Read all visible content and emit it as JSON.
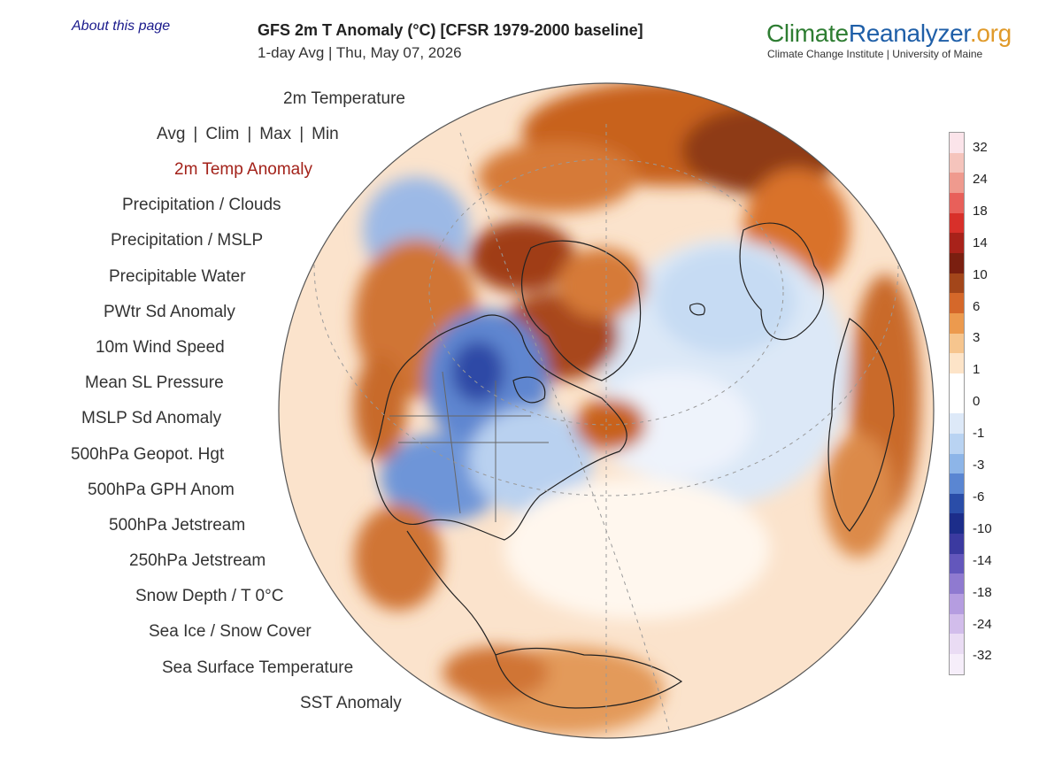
{
  "header": {
    "about_link": "About this page",
    "title": "GFS 2m T Anomaly (°C) [CFSR 1979-2000 baseline]",
    "subtitle": "1-day Avg | Thu, May 07, 2026",
    "brand_part1": "Climate",
    "brand_part2": "Reanalyzer",
    "brand_part3": ".org",
    "brand_sub": "Climate Change Institute | University of Maine"
  },
  "menu": {
    "temperature": "2m Temperature",
    "row_items": [
      "Avg",
      "Clim",
      "Max",
      "Min"
    ],
    "row_sep": "|",
    "items": [
      "2m Temp Anomaly",
      "Precipitation / Clouds",
      "Precipitation / MSLP",
      "Precipitable Water",
      "PWtr Sd Anomaly",
      "10m Wind Speed",
      "Mean SL Pressure",
      "MSLP Sd Anomaly",
      "500hPa Geopot. Hgt",
      "500hPa GPH Anom",
      "500hPa Jetstream",
      "250hPa Jetstream",
      "Snow Depth / T 0°C",
      "Sea Ice / Snow Cover",
      "Sea Surface Temperature",
      "SST Anomaly"
    ],
    "active_index": 0
  },
  "colorbar": {
    "ticks": [
      "32",
      "24",
      "18",
      "14",
      "10",
      "6",
      "3",
      "1",
      "0",
      "-1",
      "-3",
      "-6",
      "-10",
      "-14",
      "-18",
      "-24",
      "-32"
    ],
    "colors": [
      "#fbe4ea",
      "#f5c4bc",
      "#ef9a8e",
      "#e8605a",
      "#d8302a",
      "#a8221a",
      "#7a1f10",
      "#a3461a",
      "#d5682a",
      "#ec9a4e",
      "#f6c58e",
      "#fde4c8",
      "#ffffff",
      "#ffffff",
      "#dde9f8",
      "#b9d3f2",
      "#8db5e8",
      "#5a86d2",
      "#2a4da8",
      "#1c2d8a",
      "#3b3aa0",
      "#6357bc",
      "#8f7ad0",
      "#b59de0",
      "#d2bdeb",
      "#eadcf4",
      "#f6eefa"
    ]
  }
}
